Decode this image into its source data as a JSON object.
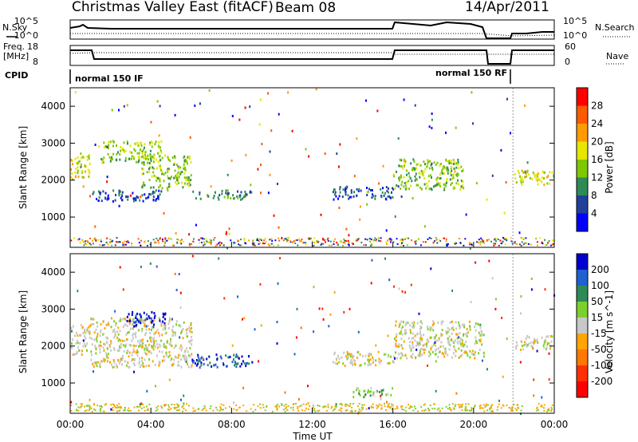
{
  "header": {
    "title": "Christmas Valley East (fitACF)",
    "beam": "Beam 08",
    "date": "14/Apr/2011"
  },
  "small_panel_labels": {
    "nsky": "N.Sky",
    "nsearch": "N.Search",
    "freq_line1": "Freq.",
    "freq_line2": "[MHz]",
    "nave": "Nave",
    "cpid": "CPID",
    "cpid_a": "normal 150 IF",
    "cpid_b": "normal 150 RF"
  },
  "small_ticks": {
    "noise_left": [
      "10^5",
      "10^0"
    ],
    "noise_right": [
      "10^5",
      "10^0"
    ],
    "freq_left": [
      "18",
      "8"
    ],
    "freq_right": [
      "60",
      "0"
    ]
  },
  "chart_data": [
    {
      "type": "heatmap",
      "name": "power",
      "ylabel": "Slant Range [km]",
      "yticks": [
        1000,
        2000,
        3000,
        4000
      ],
      "ylim": [
        180,
        4500
      ],
      "xlim_hours": [
        0,
        24
      ],
      "colorbar": {
        "label": "Power [dB]",
        "ticks": [
          "28",
          "24",
          "20",
          "16",
          "12",
          "8",
          "4"
        ],
        "colors": [
          "#ff0000",
          "#ff5a00",
          "#ff9b00",
          "#e6e600",
          "#7fc800",
          "#2e8b57",
          "#20409a",
          "#0000ff"
        ]
      },
      "bands": [
        {
          "t0": 0.0,
          "t1": 1.0,
          "r0": 2050,
          "r1": 2750,
          "level": 3
        },
        {
          "t0": 1.0,
          "t1": 4.5,
          "r0": 1450,
          "r1": 1750,
          "level": 6
        },
        {
          "t0": 1.5,
          "t1": 4.5,
          "r0": 2500,
          "r1": 3100,
          "level": 4
        },
        {
          "t0": 3.5,
          "t1": 6.0,
          "r0": 1800,
          "r1": 2700,
          "level": 4
        },
        {
          "t0": 6.0,
          "t1": 9.0,
          "r0": 1500,
          "r1": 1750,
          "level": 5
        },
        {
          "t0": 13.0,
          "t1": 16.0,
          "r0": 1500,
          "r1": 1850,
          "level": 6
        },
        {
          "t0": 16.0,
          "t1": 19.5,
          "r0": 1750,
          "r1": 2600,
          "level": 4
        },
        {
          "t0": 22.0,
          "t1": 24.0,
          "r0": 1900,
          "r1": 2300,
          "level": 3
        }
      ]
    },
    {
      "type": "heatmap",
      "name": "velocity",
      "ylabel": "Slant Range [km]",
      "yticks": [
        1000,
        2000,
        3000,
        4000
      ],
      "ylim": [
        180,
        4500
      ],
      "xlim_hours": [
        0,
        24
      ],
      "colorbar": {
        "label": "Velocity [m s^-1]",
        "ticks": [
          "200",
          "100",
          "50",
          "15",
          "-15",
          "-50",
          "-100",
          "-200"
        ],
        "colors": [
          "#0000cd",
          "#2060d0",
          "#2e8b57",
          "#7cd02c",
          "#c8c8c8",
          "#ffa500",
          "#ff7800",
          "#ff3000",
          "#ff0000"
        ]
      },
      "bands": [
        {
          "t0": 0.0,
          "t1": 1.0,
          "r0": 1800,
          "r1": 2600,
          "level": 4
        },
        {
          "t0": 1.0,
          "t1": 6.0,
          "r0": 1450,
          "r1": 2800,
          "level": 4
        },
        {
          "t0": 2.7,
          "t1": 4.7,
          "r0": 2550,
          "r1": 2950,
          "level": 0
        },
        {
          "t0": 6.0,
          "t1": 9.0,
          "r0": 1450,
          "r1": 1800,
          "level": 1
        },
        {
          "t0": 13.0,
          "t1": 16.0,
          "r0": 1500,
          "r1": 1900,
          "level": 4
        },
        {
          "t0": 14.0,
          "t1": 16.0,
          "r0": 650,
          "r1": 900,
          "level": 3
        },
        {
          "t0": 16.0,
          "t1": 20.5,
          "r0": 1700,
          "r1": 2700,
          "level": 4
        },
        {
          "t0": 22.0,
          "t1": 24.0,
          "r0": 1900,
          "r1": 2300,
          "level": 4
        }
      ]
    }
  ],
  "xaxis": {
    "label": "Time UT",
    "ticks": [
      "00:00",
      "04:00",
      "08:00",
      "12:00",
      "16:00",
      "20:00",
      "00:00"
    ]
  }
}
